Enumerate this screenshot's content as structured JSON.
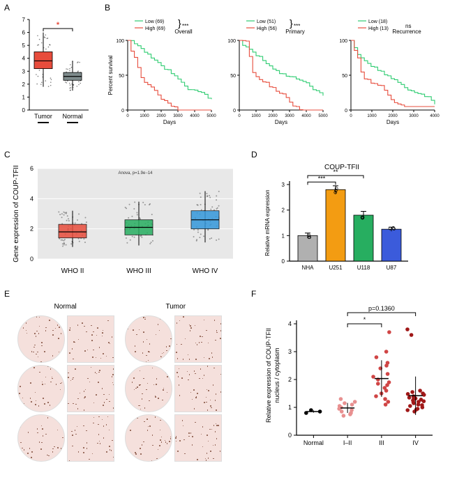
{
  "labels": {
    "A": "A",
    "B": "B",
    "C": "C",
    "D": "D",
    "E": "E",
    "F": "F"
  },
  "panelA": {
    "type": "boxplot",
    "categories": [
      "Tumor",
      "Normal"
    ],
    "ylim": [
      0,
      7
    ],
    "yticks": [
      0,
      1,
      2,
      3,
      4,
      5,
      6,
      7
    ],
    "boxes": [
      {
        "median": 3.8,
        "q1": 3.2,
        "q3": 4.5,
        "whisker_low": 1.8,
        "whisker_high": 6.0,
        "color": "#e74c3c"
      },
      {
        "median": 2.6,
        "q1": 2.3,
        "q3": 2.9,
        "whisker_low": 1.5,
        "whisker_high": 3.8,
        "color": "#7f8c8d"
      }
    ],
    "sig_marker": "*",
    "sig_color": "#e74c3c",
    "axis_color": "#000000",
    "label_fontsize": 9
  },
  "panelB": {
    "type": "survival",
    "subplots": [
      {
        "title": "Overall",
        "legend": [
          "Low (69)",
          "High (69)"
        ],
        "sig": "***",
        "xlabel": "Days",
        "xlim": [
          0,
          5000
        ],
        "xticks": [
          0,
          1000,
          2000,
          3000,
          4000,
          5000
        ],
        "ylabel": "Percent survival",
        "ylim": [
          0,
          100
        ],
        "yticks": [
          0,
          50,
          100
        ],
        "colors": {
          "low": "#2ecc71",
          "high": "#e74c3c"
        }
      },
      {
        "title": "Primary",
        "legend": [
          "Low (51)",
          "High (56)"
        ],
        "sig": "***",
        "xlabel": "Days",
        "xlim": [
          0,
          5000
        ],
        "xticks": [
          0,
          1000,
          2000,
          3000,
          4000,
          5000
        ],
        "ylabel": "",
        "ylim": [
          0,
          100
        ],
        "yticks": [
          0,
          50,
          100
        ],
        "colors": {
          "low": "#2ecc71",
          "high": "#e74c3c"
        }
      },
      {
        "title": "Recurrence",
        "legend": [
          "Low (18)",
          "High (13)"
        ],
        "sig": "ns",
        "xlabel": "Days",
        "xlim": [
          0,
          4000
        ],
        "xticks": [
          0,
          1000,
          2000,
          3000,
          4000
        ],
        "ylabel": "",
        "ylim": [
          0,
          100
        ],
        "yticks": [
          0,
          50,
          100
        ],
        "colors": {
          "low": "#2ecc71",
          "high": "#e74c3c"
        }
      }
    ],
    "label_fontsize": 8
  },
  "panelC": {
    "type": "boxplot",
    "ylabel": "Gene expression of COUP-TFII",
    "anova_text": "Anova, p=1.9e−14",
    "categories": [
      "WHO II",
      "WHO III",
      "WHO IV"
    ],
    "ylim": [
      0,
      6
    ],
    "yticks": [
      0,
      2,
      4,
      6
    ],
    "yticks_all": [
      0,
      1,
      2,
      3,
      4,
      5,
      6
    ],
    "boxes": [
      {
        "median": 1.8,
        "q1": 1.4,
        "q3": 2.3,
        "whisker_low": 0.8,
        "whisker_high": 3.2,
        "color": "#e74c3c"
      },
      {
        "median": 2.1,
        "q1": 1.6,
        "q3": 2.6,
        "whisker_low": 0.9,
        "whisker_high": 3.8,
        "color": "#27ae60"
      },
      {
        "median": 2.6,
        "q1": 2.0,
        "q3": 3.2,
        "whisker_low": 1.1,
        "whisker_high": 4.5,
        "color": "#3498db"
      }
    ],
    "plot_bg": "#e8e8e8",
    "grid_color": "#ffffff",
    "label_fontsize": 10
  },
  "panelD": {
    "type": "bar",
    "title": "COUP-TFII",
    "ylabel": "Relative mRNA expression",
    "categories": [
      "NHA",
      "U251",
      "U118",
      "U87"
    ],
    "values": [
      1.0,
      2.8,
      1.8,
      1.25
    ],
    "errors": [
      0.1,
      0.15,
      0.15,
      0.08
    ],
    "colors": [
      "#b0b0b0",
      "#f39c12",
      "#27ae60",
      "#3b5bdb"
    ],
    "ylim": [
      0,
      3
    ],
    "yticks": [
      0,
      1,
      2,
      3
    ],
    "sig": [
      {
        "from": 0,
        "to": 1,
        "label": "***",
        "y": 3.1
      },
      {
        "from": 0,
        "to": 2,
        "label": "**",
        "y": 3.35
      }
    ],
    "label_fontsize": 9
  },
  "panelE": {
    "type": "image-grid",
    "headers": [
      "Normal",
      "Tumor"
    ],
    "rows": 3,
    "cols_per_group": 2,
    "groups": 2,
    "tint": "#f5e0dc",
    "label_fontsize": 10
  },
  "panelF": {
    "type": "dotplot",
    "ylabel": "Relative expression of COUP-TFII\nnucleus / cytoplasm",
    "categories": [
      "Normal",
      "I–II",
      "III",
      "IV"
    ],
    "ylim": [
      0,
      4
    ],
    "yticks": [
      0,
      1,
      2,
      3,
      4
    ],
    "groups": [
      {
        "points": [
          0.85,
          0.9,
          0.8
        ],
        "color": "#000000"
      },
      {
        "points": [
          0.9,
          1.0,
          0.8,
          1.2,
          0.7,
          1.1,
          0.95,
          1.3,
          0.85,
          1.05,
          0.75,
          1.15
        ],
        "color": "#e89090"
      },
      {
        "points": [
          1.2,
          1.8,
          2.5,
          1.5,
          2.0,
          3.7,
          1.3,
          2.8,
          1.6,
          2.2,
          1.9,
          2.4,
          1.1,
          3.0,
          1.7,
          2.6,
          1.4,
          2.1,
          1.85
        ],
        "color": "#d04545"
      },
      {
        "points": [
          0.9,
          1.1,
          1.3,
          1.0,
          1.5,
          1.2,
          0.95,
          1.4,
          1.15,
          1.6,
          1.05,
          1.25,
          0.85,
          1.35,
          1.45,
          1.08,
          1.55,
          1.18,
          1.28,
          1.38,
          3.6,
          3.8,
          1.48,
          1.22,
          1.32,
          0.92
        ],
        "color": "#a01818"
      }
    ],
    "sig": [
      {
        "from": 1,
        "to": 2,
        "label": "*",
        "y": 4.0
      },
      {
        "from": 1,
        "to": 3,
        "label": "p=0.1360",
        "y": 4.4
      }
    ],
    "label_fontsize": 10
  }
}
